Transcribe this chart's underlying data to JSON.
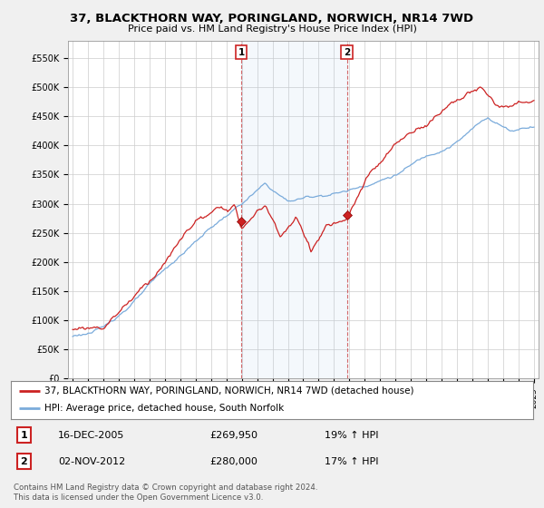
{
  "title": "37, BLACKTHORN WAY, PORINGLAND, NORWICH, NR14 7WD",
  "subtitle": "Price paid vs. HM Land Registry's House Price Index (HPI)",
  "ylabel_values": [
    "£0",
    "£50K",
    "£100K",
    "£150K",
    "£200K",
    "£250K",
    "£300K",
    "£350K",
    "£400K",
    "£450K",
    "£500K",
    "£550K"
  ],
  "ylim": [
    0,
    580000
  ],
  "yticks": [
    0,
    50000,
    100000,
    150000,
    200000,
    250000,
    300000,
    350000,
    400000,
    450000,
    500000,
    550000
  ],
  "hpi_color": "#7aabdb",
  "price_color": "#cc2222",
  "bg_color": "#f8f8f8",
  "plot_bg": "#ffffff",
  "sale1_year": 2005.96,
  "sale1_price": 269950,
  "sale2_year": 2012.84,
  "sale2_price": 280000,
  "legend1": "37, BLACKTHORN WAY, PORINGLAND, NORWICH, NR14 7WD (detached house)",
  "legend2": "HPI: Average price, detached house, South Norfolk",
  "annotation1_label": "1",
  "annotation1_date": "16-DEC-2005",
  "annotation1_price": "£269,950",
  "annotation1_hpi": "19% ↑ HPI",
  "annotation2_label": "2",
  "annotation2_date": "02-NOV-2012",
  "annotation2_price": "£280,000",
  "annotation2_hpi": "17% ↑ HPI",
  "footer": "Contains HM Land Registry data © Crown copyright and database right 2024.\nThis data is licensed under the Open Government Licence v3.0."
}
